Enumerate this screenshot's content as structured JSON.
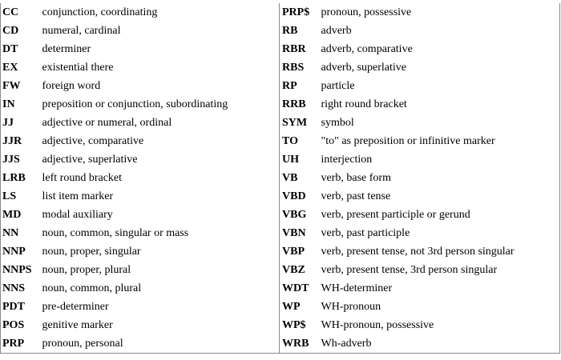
{
  "table": {
    "rows": [
      {
        "left_tag": "CC",
        "left_desc": "conjunction, coordinating",
        "right_tag": "PRP$",
        "right_desc": "pronoun, possessive"
      },
      {
        "left_tag": "CD",
        "left_desc": "numeral, cardinal",
        "right_tag": "RB",
        "right_desc": "adverb"
      },
      {
        "left_tag": "DT",
        "left_desc": "determiner",
        "right_tag": "RBR",
        "right_desc": "adverb, comparative"
      },
      {
        "left_tag": "EX",
        "left_desc": "existential there",
        "right_tag": "RBS",
        "right_desc": "adverb, superlative"
      },
      {
        "left_tag": "FW",
        "left_desc": "foreign word",
        "right_tag": "RP",
        "right_desc": "particle"
      },
      {
        "left_tag": "IN",
        "left_desc": "preposition or conjunction, subordinating",
        "right_tag": "RRB",
        "right_desc": "right round bracket"
      },
      {
        "left_tag": "JJ",
        "left_desc": "adjective or numeral, ordinal",
        "right_tag": "SYM",
        "right_desc": "symbol"
      },
      {
        "left_tag": "JJR",
        "left_desc": "adjective, comparative",
        "right_tag": "TO",
        "right_desc": "\"to\" as preposition or infinitive marker"
      },
      {
        "left_tag": "JJS",
        "left_desc": "adjective, superlative",
        "right_tag": "UH",
        "right_desc": "interjection"
      },
      {
        "left_tag": "LRB",
        "left_desc": "left round bracket",
        "right_tag": "VB",
        "right_desc": "verb, base form"
      },
      {
        "left_tag": "LS",
        "left_desc": "list item marker",
        "right_tag": "VBD",
        "right_desc": "verb, past tense"
      },
      {
        "left_tag": "MD",
        "left_desc": "modal auxiliary",
        "right_tag": "VBG",
        "right_desc": "verb, present participle or gerund"
      },
      {
        "left_tag": "NN",
        "left_desc": "noun, common, singular or mass",
        "right_tag": "VBN",
        "right_desc": "verb, past participle"
      },
      {
        "left_tag": "NNP",
        "left_desc": "noun, proper, singular",
        "right_tag": "VBP",
        "right_desc": "verb, present tense, not 3rd person singular"
      },
      {
        "left_tag": "NNPS",
        "left_desc": "noun, proper, plural",
        "right_tag": "VBZ",
        "right_desc": "verb, present tense, 3rd person singular"
      },
      {
        "left_tag": "NNS",
        "left_desc": "noun, common, plural",
        "right_tag": "WDT",
        "right_desc": "WH-determiner"
      },
      {
        "left_tag": "PDT",
        "left_desc": "pre-determiner",
        "right_tag": "WP",
        "right_desc": "WH-pronoun"
      },
      {
        "left_tag": "POS",
        "left_desc": "genitive marker",
        "right_tag": "WP$",
        "right_desc": "WH-pronoun, possessive"
      },
      {
        "left_tag": "PRP",
        "left_desc": "pronoun, personal",
        "right_tag": "WRB",
        "right_desc": "Wh-adverb"
      }
    ]
  }
}
